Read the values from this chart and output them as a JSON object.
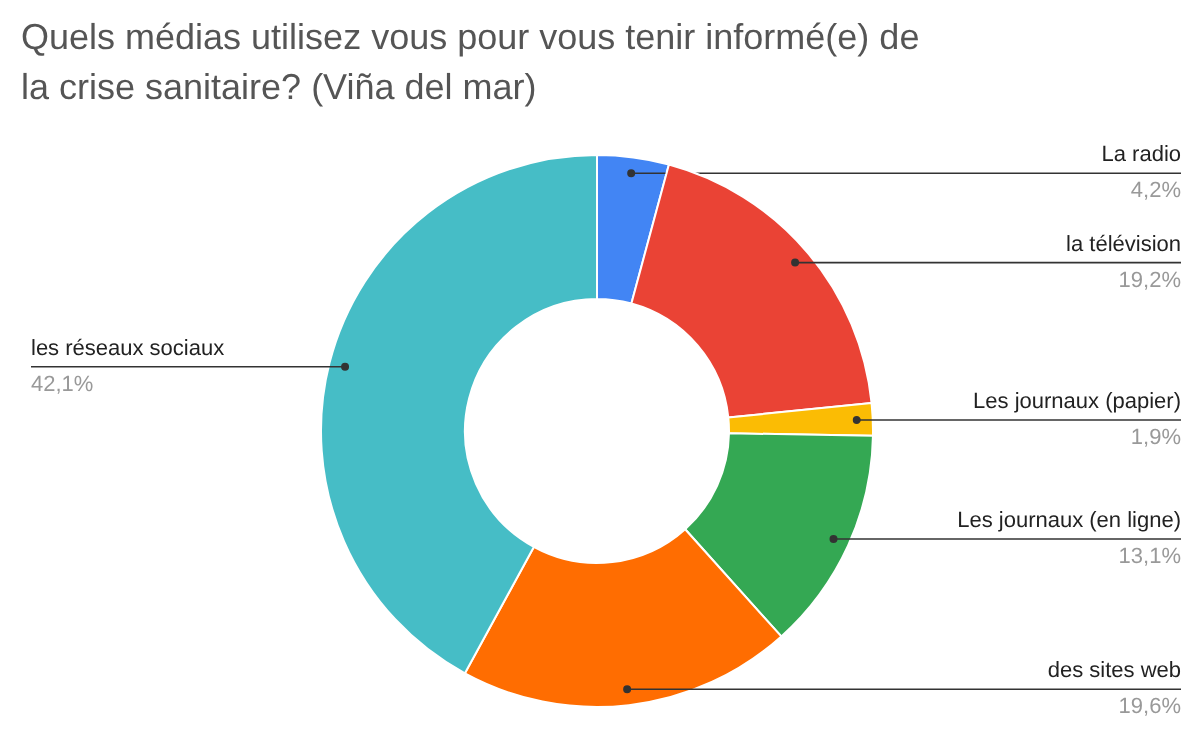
{
  "chart_data": {
    "type": "donut",
    "title": "Quels médias utilisez vous pour vous tenir informé(e) de la crise sanitaire? (Viña del mar)",
    "categories": [
      "La radio",
      "la télévision",
      "Les journaux (papier)",
      "Les journaux (en ligne)",
      "des sites web",
      "les réseaux sociaux"
    ],
    "values": [
      4.2,
      19.2,
      1.9,
      13.1,
      19.6,
      42.1
    ],
    "colors": [
      "#4285f4",
      "#ea4335",
      "#fbbc04",
      "#34a853",
      "#ff6d01",
      "#46bdc6"
    ],
    "value_labels": [
      "4,2%",
      "19,2%",
      "1,9%",
      "13,1%",
      "19,6%",
      "42,1%"
    ]
  }
}
